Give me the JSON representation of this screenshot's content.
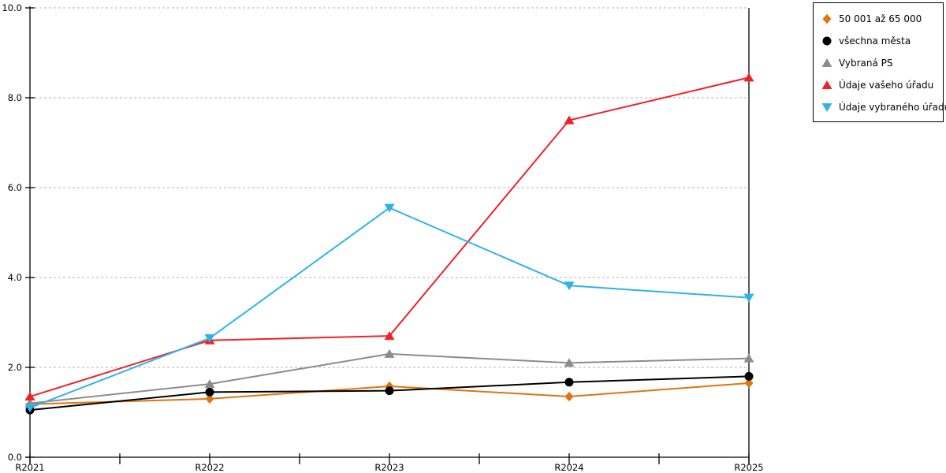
{
  "chart_data": {
    "type": "line",
    "categories": [
      "R2021",
      "R2022",
      "R2023",
      "R2024",
      "R2025"
    ],
    "series": [
      {
        "name": "50 001 až 65 000",
        "marker": "diamond",
        "color": "#E1740D",
        "values": [
          1.18,
          1.3,
          1.58,
          1.35,
          1.65
        ]
      },
      {
        "name": "všechna města",
        "marker": "circle",
        "color": "#000000",
        "values": [
          1.05,
          1.45,
          1.48,
          1.67,
          1.8
        ]
      },
      {
        "name": "Vybraná PS",
        "marker": "triangle-up",
        "color": "#8C8C8C",
        "values": [
          1.2,
          1.63,
          2.3,
          2.1,
          2.2
        ]
      },
      {
        "name": "Údaje vašeho úřadu",
        "marker": "triangle-up",
        "color": "#F02126",
        "values": [
          1.35,
          2.6,
          2.7,
          7.5,
          8.45
        ]
      },
      {
        "name": "Údaje vybraného úřadu",
        "marker": "triangle-down",
        "color": "#2EB3E7",
        "values": [
          1.1,
          2.65,
          5.55,
          3.82,
          3.55
        ]
      }
    ],
    "title": "",
    "xlabel": "",
    "ylabel": "",
    "ylim": [
      0,
      10
    ],
    "ytick_step": 2,
    "ytick_labels": [
      "0.0",
      "2.0",
      "4.0",
      "6.0",
      "8.0",
      "10.0"
    ],
    "x_minor_ticks_between_categories": true,
    "grid": "horizontal-dashed",
    "grid_color": "#B3B3B3",
    "axis_color": "#000000",
    "legend_position": "top-right"
  }
}
